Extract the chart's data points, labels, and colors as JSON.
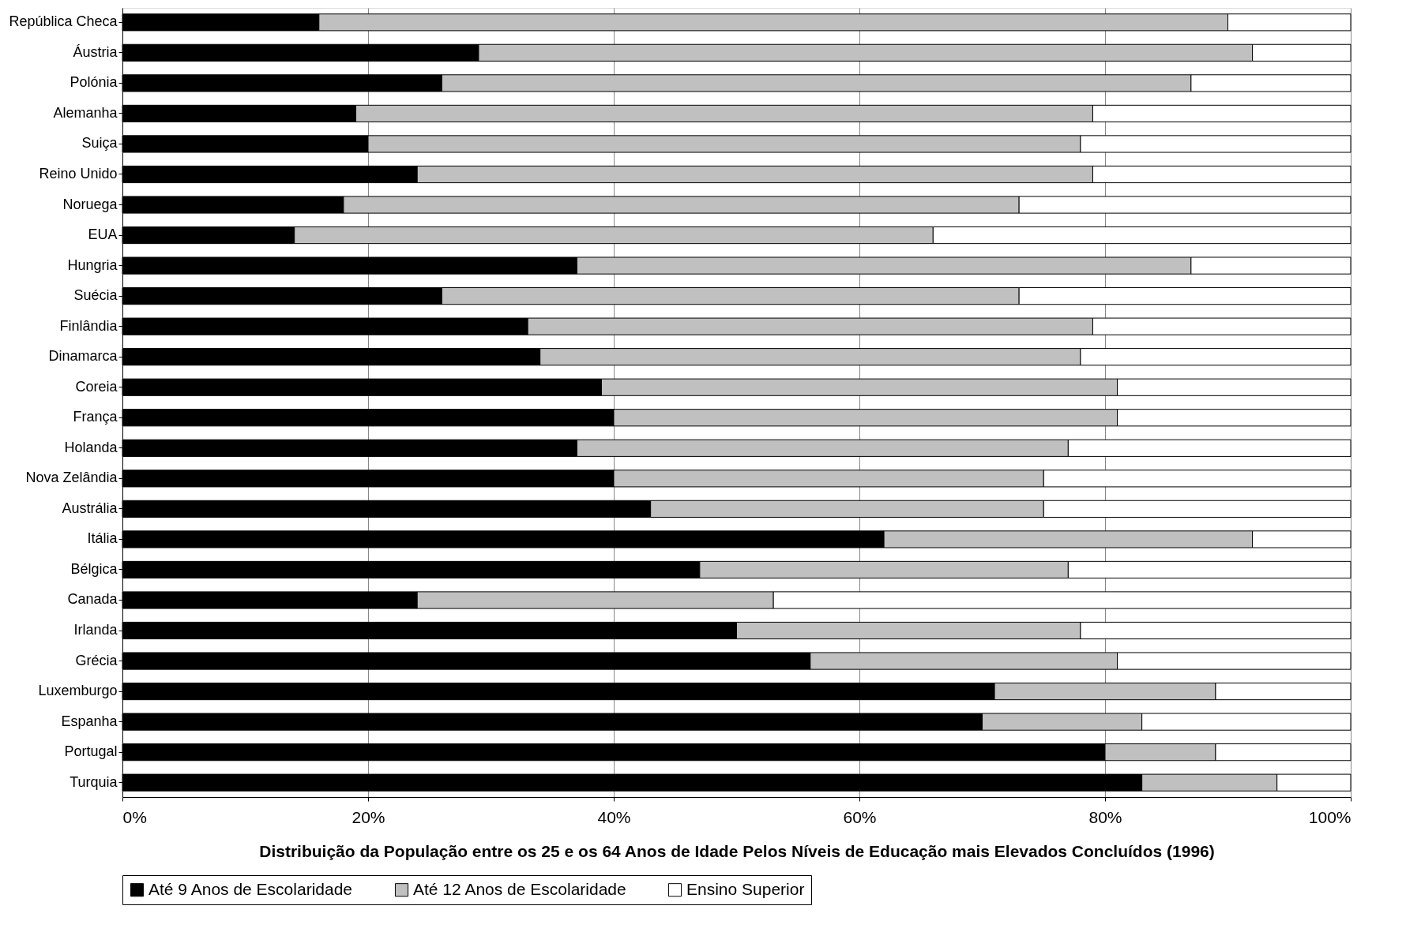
{
  "chart_data": {
    "type": "bar",
    "orientation": "horizontal",
    "stacked": true,
    "xlabel": "Distribuição da População entre os 25 e os 64 Anos de Idade Pelos Níveis de Educação mais Elevados Concluídos (1996)",
    "categories": [
      "República Checa",
      "Áustria",
      "Polónia",
      "Alemanha",
      "Suiça",
      "Reino Unido",
      "Noruega",
      "EUA",
      "Hungria",
      "Suécia",
      "Finlândia",
      "Dinamarca",
      "Coreia",
      "França",
      "Holanda",
      "Nova Zelândia",
      "Austrália",
      "Itália",
      "Bélgica",
      "Canada",
      "Irlanda",
      "Grécia",
      "Luxemburgo",
      "Espanha",
      "Portugal",
      "Turquia"
    ],
    "series": [
      {
        "name": "Até 9 Anos de Escolaridade",
        "color": "#000000",
        "values": [
          16,
          29,
          26,
          19,
          20,
          24,
          18,
          14,
          37,
          26,
          33,
          34,
          39,
          40,
          37,
          40,
          43,
          62,
          47,
          24,
          50,
          56,
          71,
          70,
          80,
          83
        ]
      },
      {
        "name": "Até 12 Anos de Escolaridade",
        "color": "#c0c0c0",
        "values": [
          74,
          63,
          61,
          60,
          58,
          55,
          55,
          52,
          50,
          47,
          46,
          44,
          42,
          41,
          40,
          35,
          32,
          30,
          30,
          29,
          28,
          25,
          18,
          13,
          9,
          11
        ]
      },
      {
        "name": "Ensino Superior",
        "color": "#ffffff",
        "values": [
          10,
          8,
          13,
          21,
          22,
          21,
          27,
          34,
          13,
          27,
          21,
          22,
          19,
          19,
          23,
          25,
          25,
          8,
          23,
          47,
          22,
          19,
          11,
          17,
          11,
          6
        ]
      }
    ],
    "xlim": [
      0,
      100
    ],
    "xticks": [
      {
        "value": 0,
        "label": "0%"
      },
      {
        "value": 20,
        "label": "20%"
      },
      {
        "value": 40,
        "label": "40%"
      },
      {
        "value": 60,
        "label": "60%"
      },
      {
        "value": 80,
        "label": "80%"
      },
      {
        "value": 100,
        "label": "100%"
      }
    ],
    "grid": "x",
    "legend": "bottom"
  }
}
